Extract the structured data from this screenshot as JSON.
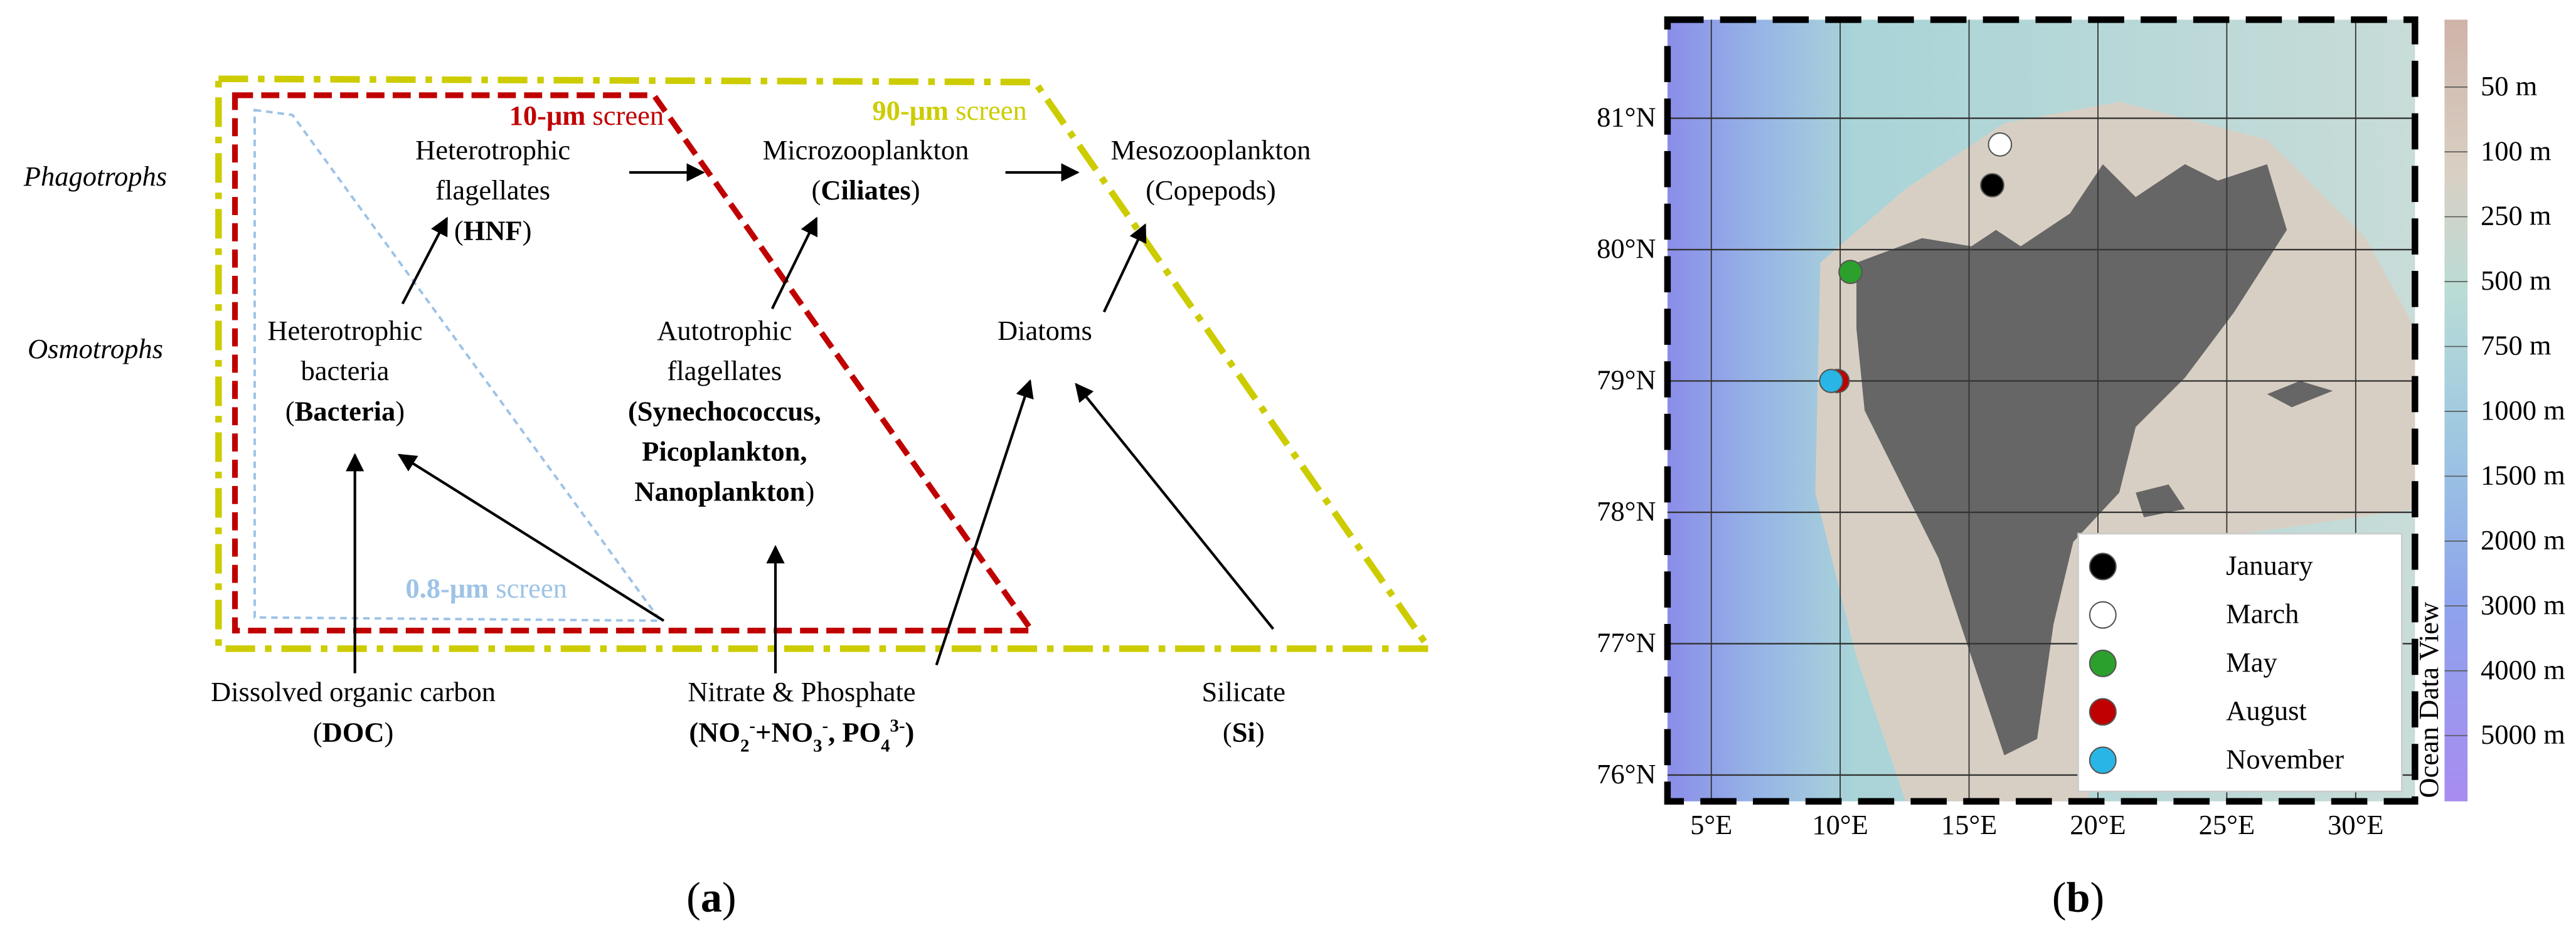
{
  "panel_a": {
    "side_labels": [
      "Phagotrophs",
      "Osmotrophs"
    ],
    "screens": [
      {
        "size": "10-μm",
        "suffix": "screen",
        "color": "#c00000"
      },
      {
        "size": "90-μm",
        "suffix": "screen",
        "color": "#cccc00"
      },
      {
        "size": "0.8-μm",
        "suffix": "screen",
        "color": "#9dc3e6"
      }
    ],
    "nodes": [
      {
        "lines": [
          [
            {
              "text": "Heterotrophic"
            }
          ],
          [
            {
              "text": "flagellates"
            }
          ],
          [
            {
              "text": "("
            },
            {
              "text": "HNF",
              "style": "bold"
            },
            {
              "text": ")"
            }
          ]
        ]
      },
      {
        "lines": [
          [
            {
              "text": "Microzooplankton"
            }
          ],
          [
            {
              "text": "("
            },
            {
              "text": "Ciliates",
              "style": "bold"
            },
            {
              "text": ")"
            }
          ]
        ]
      },
      {
        "lines": [
          [
            {
              "text": "Mesozooplankton"
            }
          ],
          [
            {
              "text": "(Copepods)"
            }
          ]
        ]
      },
      {
        "lines": [
          [
            {
              "text": "Heterotrophic"
            }
          ],
          [
            {
              "text": "bacteria"
            }
          ],
          [
            {
              "text": "("
            },
            {
              "text": "Bacteria",
              "style": "bold"
            },
            {
              "text": ")"
            }
          ]
        ]
      },
      {
        "lines": [
          [
            {
              "text": "Autotrophic"
            }
          ],
          [
            {
              "text": "flagellates"
            }
          ],
          [
            {
              "text": "(Synechococcus,",
              "style": "bold"
            }
          ],
          [
            {
              "text": "Picoplankton,",
              "style": "bold"
            }
          ],
          [
            {
              "text": "Nanoplankton",
              "style": "bold"
            },
            {
              "text": ")"
            }
          ]
        ]
      },
      {
        "lines": [
          [
            {
              "text": "Diatoms"
            }
          ]
        ]
      },
      {
        "lines": [
          [
            {
              "text": "Dissolved organic carbon"
            }
          ],
          [
            {
              "text": "("
            },
            {
              "text": "DOC",
              "style": "bold"
            },
            {
              "text": ")"
            }
          ]
        ]
      },
      {
        "lines": [
          [
            {
              "text": "Nitrate & Phosphate"
            }
          ],
          [
            {
              "text": "(NO",
              "style": "bold"
            },
            {
              "text": "2",
              "style": "bold-sub"
            },
            {
              "text": "-",
              "style": "bold-sup"
            },
            {
              "text": "+NO",
              "style": "bold"
            },
            {
              "text": "3",
              "style": "bold-sub"
            },
            {
              "text": "-",
              "style": "bold-sup"
            },
            {
              "text": ", PO",
              "style": "bold"
            },
            {
              "text": "4",
              "style": "bold-sub"
            },
            {
              "text": "3-",
              "style": "bold-sup"
            },
            {
              "text": ")",
              "style": "bold"
            }
          ]
        ]
      },
      {
        "lines": [
          [
            {
              "text": "Silicate"
            }
          ],
          [
            {
              "text": "("
            },
            {
              "text": "Si",
              "style": "bold"
            },
            {
              "text": ")"
            }
          ]
        ]
      }
    ],
    "label": [
      "(",
      "a",
      ")"
    ]
  },
  "panel_b": {
    "xlim": [
      3.3,
      32.3
    ],
    "ylim": [
      75.8,
      81.75
    ],
    "xticks": [
      {
        "value": 5,
        "label": "5°E"
      },
      {
        "value": 10,
        "label": "10°E"
      },
      {
        "value": 15,
        "label": "15°E"
      },
      {
        "value": 20,
        "label": "20°E"
      },
      {
        "value": 25,
        "label": "25°E"
      },
      {
        "value": 30,
        "label": "30°E"
      }
    ],
    "yticks": [
      {
        "value": 76,
        "label": "76°N"
      },
      {
        "value": 77,
        "label": "77°N"
      },
      {
        "value": 78,
        "label": "78°N"
      },
      {
        "value": 79,
        "label": "79°N"
      },
      {
        "value": 80,
        "label": "80°N"
      },
      {
        "value": 81,
        "label": "81°N"
      }
    ],
    "stations": [
      {
        "name": "January",
        "color": "#000000",
        "lon": 15.9,
        "lat": 80.49
      },
      {
        "name": "March",
        "color": "#ffffff",
        "lon": 16.2,
        "lat": 80.8
      },
      {
        "name": "May",
        "color": "#2ca02c",
        "lon": 10.4,
        "lat": 79.83
      },
      {
        "name": "August",
        "color": "#c00000",
        "lon": 9.9,
        "lat": 79.0
      },
      {
        "name": "November",
        "color": "#29b6e6",
        "lon": 9.65,
        "lat": 79.0
      }
    ],
    "colorbar": {
      "labels": [
        "50 m",
        "100 m",
        "250 m",
        "500 m",
        "750 m",
        "1000 m",
        "1500 m",
        "2000 m",
        "3000 m",
        "4000 m",
        "5000 m"
      ],
      "note": "Ocean Data View"
    },
    "label": [
      "(",
      "b",
      ")"
    ]
  }
}
